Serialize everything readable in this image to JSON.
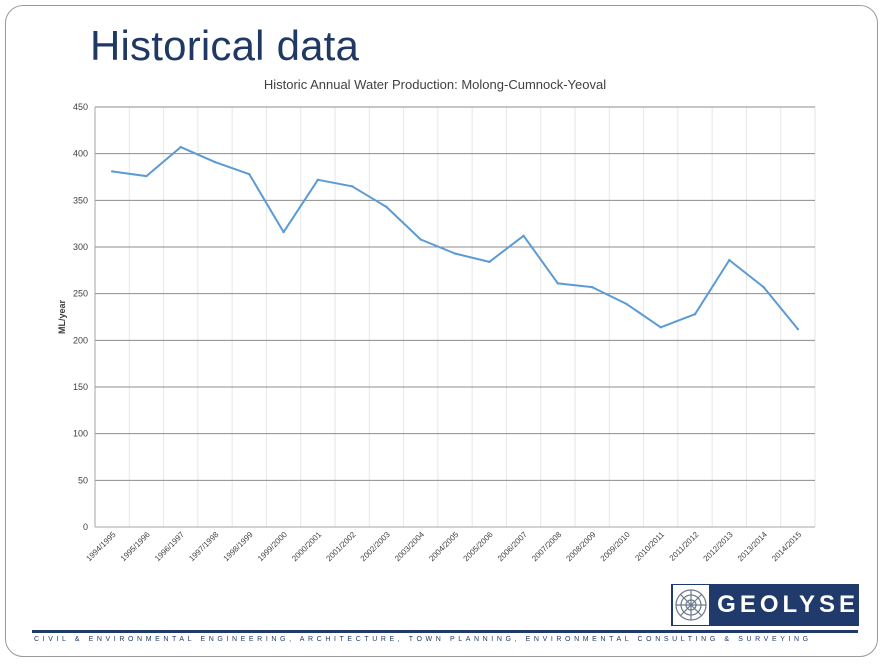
{
  "slide": {
    "title": "Historical data"
  },
  "chart_data": {
    "type": "line",
    "title": "Historic Annual Water Production: Molong-Cumnock-Yeoval",
    "xlabel": "",
    "ylabel": "ML/year",
    "ylim": [
      0,
      450
    ],
    "yticks": [
      0,
      50,
      100,
      150,
      200,
      250,
      300,
      350,
      400,
      450
    ],
    "grid": true,
    "categories": [
      "1994/1995",
      "1995/1996",
      "1996/1997",
      "1997/1998",
      "1998/1999",
      "1999/2000",
      "2000/2001",
      "2001/2002",
      "2002/2003",
      "2003/2004",
      "2004/2005",
      "2005/2006",
      "2006/2007",
      "2007/2008",
      "2008/2009",
      "2009/2010",
      "2010/2011",
      "2011/2012",
      "2012/2013",
      "2013/2014",
      "2014/2015"
    ],
    "series": [
      {
        "values": [
          381,
          376,
          407,
          391,
          378,
          316,
          372,
          365,
          343,
          308,
          293,
          284,
          312,
          261,
          257,
          239,
          214,
          228,
          286,
          257,
          212
        ],
        "color": "#5b9bd5"
      }
    ]
  },
  "footer": {
    "company": "GEOLYSE",
    "tagline": "CIVIL & ENVIRONMENTAL ENGINEERING, ARCHITECTURE, TOWN PLANNING, ENVIRONMENTAL CONSULTING & SURVEYING",
    "brand_color": "#1f3a6b"
  }
}
